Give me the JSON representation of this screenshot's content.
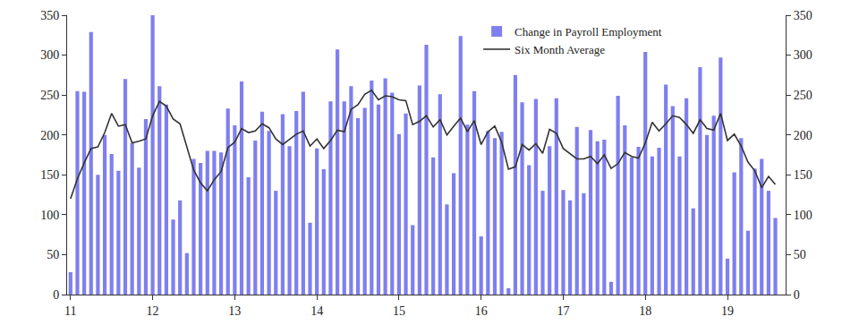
{
  "chart_data": {
    "type": "bar",
    "categories": [
      "11",
      null,
      null,
      null,
      null,
      null,
      null,
      null,
      null,
      null,
      null,
      null,
      "12",
      null,
      null,
      null,
      null,
      null,
      null,
      null,
      null,
      null,
      null,
      null,
      "13",
      null,
      null,
      null,
      null,
      null,
      null,
      null,
      null,
      null,
      null,
      null,
      "14",
      null,
      null,
      null,
      null,
      null,
      null,
      null,
      null,
      null,
      null,
      null,
      "15",
      null,
      null,
      null,
      null,
      null,
      null,
      null,
      null,
      null,
      null,
      null,
      "16",
      null,
      null,
      null,
      null,
      null,
      null,
      null,
      null,
      null,
      null,
      null,
      "17",
      null,
      null,
      null,
      null,
      null,
      null,
      null,
      null,
      null,
      null,
      null,
      "18",
      null,
      null,
      null,
      null,
      null,
      null,
      null,
      null,
      null,
      null,
      null,
      "19",
      null,
      null,
      null,
      null,
      null,
      null,
      null
    ],
    "series": [
      {
        "name": "Change in Payroll Employment",
        "type": "bar",
        "color": "#7f7ff0",
        "values": [
          28,
          255,
          254,
          329,
          150,
          200,
          176,
          155,
          270,
          190,
          159,
          220,
          350,
          261,
          238,
          94,
          118,
          52,
          170,
          165,
          180,
          180,
          178,
          233,
          212,
          267,
          147,
          193,
          229,
          205,
          130,
          226,
          186,
          230,
          254,
          90,
          183,
          157,
          242,
          307,
          242,
          261,
          221,
          234,
          268,
          238,
          271,
          253,
          201,
          227,
          87,
          262,
          313,
          172,
          251,
          113,
          152,
          324,
          213,
          255,
          73,
          205,
          196,
          204,
          8,
          275,
          241,
          162,
          245,
          130,
          186,
          246,
          131,
          118,
          210,
          127,
          206,
          192,
          194,
          16,
          249,
          212,
          172,
          185,
          304,
          173,
          184,
          263,
          236,
          173,
          246,
          108,
          285,
          200,
          224,
          297,
          45,
          153,
          196,
          80,
          158,
          170,
          130,
          96
        ]
      },
      {
        "name": "Six Month Average",
        "type": "line",
        "color": "#333333",
        "axis": "y2",
        "values": [
          120,
          145,
          165,
          183,
          185,
          203,
          227,
          211,
          213,
          190,
          192,
          195,
          224,
          242,
          236,
          220,
          214,
          186,
          156,
          140,
          130,
          144,
          154,
          184,
          191,
          208,
          203,
          205,
          214,
          209,
          195,
          188,
          195,
          201,
          205,
          186,
          195,
          183,
          193,
          206,
          204,
          232,
          238,
          251,
          256,
          244,
          249,
          248,
          244,
          243,
          213,
          217,
          224,
          210,
          219,
          200,
          211,
          221,
          204,
          218,
          188,
          204,
          211,
          191,
          157,
          160,
          188,
          181,
          189,
          177,
          207,
          202,
          183,
          176,
          170,
          170,
          173,
          164,
          175,
          158,
          164,
          178,
          173,
          171,
          190,
          216,
          205,
          214,
          224,
          222,
          213,
          202,
          219,
          208,
          206,
          227,
          193,
          201,
          186,
          166,
          155,
          134,
          148,
          138
        ]
      }
    ],
    "ylim": [
      0,
      350
    ],
    "yticks": [
      0,
      50,
      100,
      150,
      200,
      250,
      300,
      350
    ],
    "y2lim": [
      0,
      350
    ],
    "y2ticks": [
      0,
      50,
      100,
      150,
      200,
      250,
      300,
      350
    ],
    "legend": "top right",
    "grid": false
  }
}
